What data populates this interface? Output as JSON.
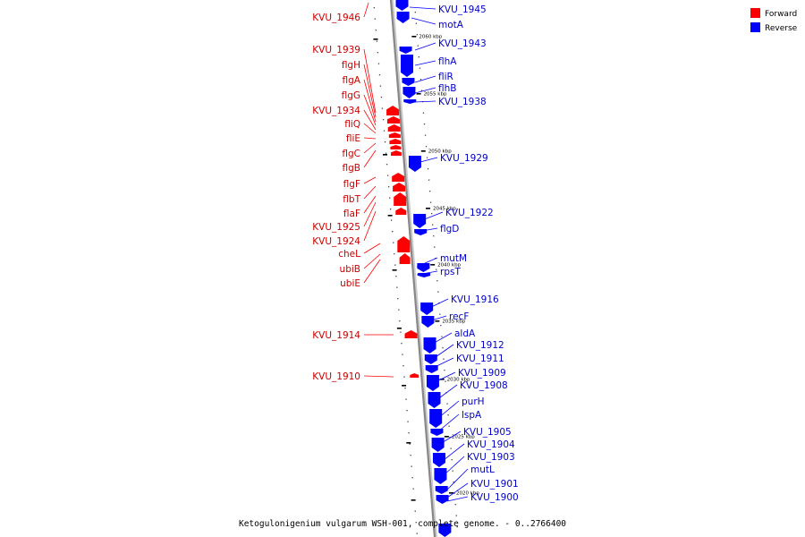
{
  "caption": "Ketogulonigenium vulgarum WSH-001, complete genome. - 0..2766400",
  "legend": [
    {
      "label": "Forward",
      "color": "#ff0000"
    },
    {
      "label": "Reverse",
      "color": "#0000ff"
    }
  ],
  "colors": {
    "forward": "#ff0000",
    "reverse": "#0000ff",
    "backbone": "#888888"
  },
  "ticks": [
    "2060 kbp",
    "2055 kbp",
    "2050 kbp",
    "2045 kbp",
    "2040 kbp",
    "2035 kbp",
    "2030 kbp",
    "2025 kbp",
    "2020 kbp"
  ],
  "forward_genes": [
    "KVU_1946",
    "KVU_1939",
    "flgH",
    "flgA",
    "flgG",
    "KVU_1934",
    "fliQ",
    "fliE",
    "flgC",
    "flgB",
    "flgF",
    "flbT",
    "flaF",
    "KVU_1925",
    "KVU_1924",
    "cheL",
    "ubiB",
    "ubiE",
    "KVU_1914",
    "KVU_1910"
  ],
  "reverse_genes": [
    "KVU_1945",
    "motA",
    "KVU_1943",
    "flhA",
    "fliR",
    "flhB",
    "KVU_1938",
    "KVU_1929",
    "KVU_1922",
    "flgD",
    "mutM",
    "rpsT",
    "KVU_1916",
    "recF",
    "aldA",
    "KVU_1912",
    "KVU_1911",
    "KVU_1909",
    "KVU_1908",
    "purH",
    "lspA",
    "KVU_1905",
    "KVU_1904",
    "KVU_1903",
    "mutL",
    "KVU_1901",
    "KVU_1900"
  ]
}
